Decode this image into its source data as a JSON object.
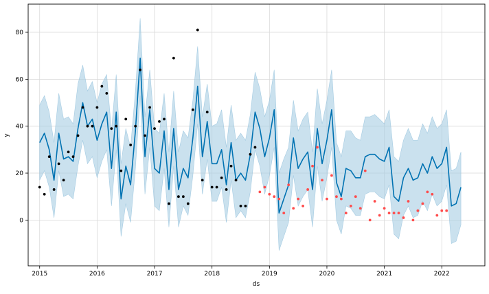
{
  "chart_data": {
    "type": "line",
    "xlabel": "ds",
    "ylabel": "y",
    "xlim": [
      2014.8,
      2022.75
    ],
    "ylim": [
      -19.5,
      92
    ],
    "x_ticks": [
      2015,
      2016,
      2017,
      2018,
      2019,
      2020,
      2021,
      2022
    ],
    "x_tick_labels": [
      "2015",
      "2016",
      "2017",
      "2018",
      "2019",
      "2020",
      "2021",
      "2022"
    ],
    "y_ticks": [
      0,
      20,
      40,
      60,
      80
    ],
    "y_tick_labels": [
      "0",
      "20",
      "40",
      "60",
      "80"
    ],
    "grid": true,
    "colors": {
      "forecast_line": "#0072b2",
      "uncertainty_band": "#a6cde3",
      "observed": "#000000",
      "test": "#ff4b4b",
      "grid": "#d9d9d9",
      "axis": "#000000"
    },
    "series": [
      {
        "name": "forecast",
        "x": [
          2015.0,
          2015.083,
          2015.167,
          2015.25,
          2015.333,
          2015.417,
          2015.5,
          2015.583,
          2015.667,
          2015.75,
          2015.833,
          2015.917,
          2016.0,
          2016.083,
          2016.167,
          2016.25,
          2016.333,
          2016.417,
          2016.5,
          2016.583,
          2016.667,
          2016.75,
          2016.833,
          2016.917,
          2017.0,
          2017.083,
          2017.167,
          2017.25,
          2017.333,
          2017.417,
          2017.5,
          2017.583,
          2017.667,
          2017.75,
          2017.833,
          2017.917,
          2018.0,
          2018.083,
          2018.167,
          2018.25,
          2018.333,
          2018.417,
          2018.5,
          2018.583,
          2018.667,
          2018.75,
          2018.833,
          2018.917,
          2019.0,
          2019.083,
          2019.167,
          2019.25,
          2019.333,
          2019.417,
          2019.5,
          2019.583,
          2019.667,
          2019.75,
          2019.833,
          2019.917,
          2020.0,
          2020.083,
          2020.167,
          2020.25,
          2020.333,
          2020.417,
          2020.5,
          2020.583,
          2020.667,
          2020.75,
          2020.833,
          2020.917,
          2021.0,
          2021.083,
          2021.167,
          2021.25,
          2021.333,
          2021.417,
          2021.5,
          2021.583,
          2021.667,
          2021.75,
          2021.833,
          2021.917,
          2022.0,
          2022.083,
          2022.167,
          2022.25,
          2022.333
        ],
        "y": [
          33,
          37,
          30,
          17,
          37,
          26,
          27,
          25,
          39,
          50,
          40,
          43,
          34,
          41,
          46,
          22,
          46,
          9,
          23,
          15,
          38,
          69,
          27,
          47,
          22,
          20,
          38,
          13,
          39,
          13,
          22,
          18,
          35,
          57,
          27,
          42,
          24,
          24,
          30,
          15,
          33,
          17,
          20,
          17,
          28,
          46,
          39,
          27,
          35,
          47,
          3,
          9,
          15,
          35,
          22,
          26,
          29,
          13,
          39,
          24,
          34,
          47,
          16,
          10,
          22,
          21,
          18,
          18,
          27,
          28,
          28,
          26,
          25,
          31,
          10,
          8,
          18,
          22,
          17,
          18,
          24,
          20,
          27,
          22,
          24,
          31,
          6,
          7,
          14
        ]
      },
      {
        "name": "uncertainty_upper",
        "x": [
          2015.0,
          2015.083,
          2015.167,
          2015.25,
          2015.333,
          2015.417,
          2015.5,
          2015.583,
          2015.667,
          2015.75,
          2015.833,
          2015.917,
          2016.0,
          2016.083,
          2016.167,
          2016.25,
          2016.333,
          2016.417,
          2016.5,
          2016.583,
          2016.667,
          2016.75,
          2016.833,
          2016.917,
          2017.0,
          2017.083,
          2017.167,
          2017.25,
          2017.333,
          2017.417,
          2017.5,
          2017.583,
          2017.667,
          2017.75,
          2017.833,
          2017.917,
          2018.0,
          2018.083,
          2018.167,
          2018.25,
          2018.333,
          2018.417,
          2018.5,
          2018.583,
          2018.667,
          2018.75,
          2018.833,
          2018.917,
          2019.0,
          2019.083,
          2019.167,
          2019.25,
          2019.333,
          2019.417,
          2019.5,
          2019.583,
          2019.667,
          2019.75,
          2019.833,
          2019.917,
          2020.0,
          2020.083,
          2020.167,
          2020.25,
          2020.333,
          2020.417,
          2020.5,
          2020.583,
          2020.667,
          2020.75,
          2020.833,
          2020.917,
          2021.0,
          2021.083,
          2021.167,
          2021.25,
          2021.333,
          2021.417,
          2021.5,
          2021.583,
          2021.667,
          2021.75,
          2021.833,
          2021.917,
          2022.0,
          2022.083,
          2022.167,
          2022.25,
          2022.333
        ],
        "y": [
          49,
          53,
          46,
          33,
          54,
          43,
          44,
          41,
          58,
          66,
          55,
          59,
          50,
          58,
          62,
          38,
          62,
          24,
          39,
          31,
          55,
          86,
          44,
          64,
          39,
          37,
          54,
          29,
          55,
          29,
          38,
          35,
          51,
          74,
          44,
          58,
          40,
          41,
          47,
          31,
          49,
          34,
          37,
          34,
          45,
          63,
          56,
          44,
          51,
          64,
          20,
          26,
          31,
          51,
          38,
          43,
          46,
          29,
          56,
          41,
          51,
          64,
          33,
          27,
          38,
          38,
          35,
          34,
          44,
          44,
          45,
          43,
          41,
          47,
          27,
          25,
          34,
          39,
          34,
          34,
          41,
          37,
          44,
          39,
          41,
          47,
          21,
          22,
          29
        ]
      },
      {
        "name": "uncertainty_lower",
        "x": [
          2015.0,
          2015.083,
          2015.167,
          2015.25,
          2015.333,
          2015.417,
          2015.5,
          2015.583,
          2015.667,
          2015.75,
          2015.833,
          2015.917,
          2016.0,
          2016.083,
          2016.167,
          2016.25,
          2016.333,
          2016.417,
          2016.5,
          2016.583,
          2016.667,
          2016.75,
          2016.833,
          2016.917,
          2017.0,
          2017.083,
          2017.167,
          2017.25,
          2017.333,
          2017.417,
          2017.5,
          2017.583,
          2017.667,
          2017.75,
          2017.833,
          2017.917,
          2018.0,
          2018.083,
          2018.167,
          2018.25,
          2018.333,
          2018.417,
          2018.5,
          2018.583,
          2018.667,
          2018.75,
          2018.833,
          2018.917,
          2019.0,
          2019.083,
          2019.167,
          2019.25,
          2019.333,
          2019.417,
          2019.5,
          2019.583,
          2019.667,
          2019.75,
          2019.833,
          2019.917,
          2020.0,
          2020.083,
          2020.167,
          2020.25,
          2020.333,
          2020.417,
          2020.5,
          2020.583,
          2020.667,
          2020.75,
          2020.833,
          2020.917,
          2021.0,
          2021.083,
          2021.167,
          2021.25,
          2021.333,
          2021.417,
          2021.5,
          2021.583,
          2021.667,
          2021.75,
          2021.833,
          2021.917,
          2022.0,
          2022.083,
          2022.167,
          2022.25,
          2022.333
        ],
        "y": [
          17,
          21,
          14,
          1,
          21,
          10,
          11,
          9,
          23,
          34,
          24,
          27,
          18,
          25,
          30,
          6,
          30,
          -7,
          7,
          -1,
          22,
          53,
          11,
          31,
          6,
          4,
          22,
          -3,
          23,
          -3,
          6,
          2,
          19,
          41,
          11,
          26,
          8,
          8,
          14,
          -1,
          17,
          1,
          4,
          1,
          12,
          30,
          23,
          11,
          19,
          31,
          -13,
          -7,
          -1,
          19,
          6,
          10,
          13,
          -3,
          23,
          8,
          18,
          31,
          0,
          -6,
          6,
          5,
          2,
          2,
          11,
          12,
          12,
          10,
          9,
          15,
          -6,
          -8,
          2,
          6,
          1,
          2,
          8,
          4,
          11,
          6,
          8,
          15,
          -10,
          -9,
          -2
        ]
      },
      {
        "name": "observed",
        "x": [
          2015.0,
          2015.083,
          2015.167,
          2015.25,
          2015.333,
          2015.417,
          2015.5,
          2015.583,
          2015.667,
          2015.75,
          2015.833,
          2015.917,
          2016.0,
          2016.083,
          2016.167,
          2016.25,
          2016.333,
          2016.417,
          2016.5,
          2016.583,
          2016.667,
          2016.75,
          2016.833,
          2016.917,
          2017.0,
          2017.083,
          2017.167,
          2017.25,
          2017.333,
          2017.417,
          2017.5,
          2017.583,
          2017.667,
          2017.75,
          2017.833,
          2017.917,
          2018.0,
          2018.083,
          2018.167,
          2018.25,
          2018.333,
          2018.417,
          2018.5,
          2018.583,
          2018.667,
          2018.75
        ],
        "y": [
          14,
          11,
          27,
          13,
          24,
          17,
          29,
          27,
          36,
          48,
          40,
          40,
          48,
          57,
          54,
          39,
          40,
          21,
          43,
          32,
          40,
          64,
          36,
          48,
          39,
          42,
          43,
          7,
          69,
          10,
          10,
          7,
          47,
          81,
          17,
          46,
          14,
          14,
          18,
          13,
          23,
          17,
          6,
          6,
          28,
          31
        ]
      },
      {
        "name": "test",
        "x": [
          2018.833,
          2018.917,
          2019.0,
          2019.083,
          2019.167,
          2019.25,
          2019.333,
          2019.417,
          2019.5,
          2019.583,
          2019.667,
          2019.75,
          2019.833,
          2019.917,
          2020.0,
          2020.083,
          2020.167,
          2020.25,
          2020.333,
          2020.417,
          2020.5,
          2020.583,
          2020.667,
          2020.75,
          2020.833,
          2020.917,
          2021.0,
          2021.083,
          2021.167,
          2021.25,
          2021.333,
          2021.417,
          2021.5,
          2021.583,
          2021.667,
          2021.75,
          2021.833,
          2021.917,
          2022.0,
          2022.083
        ],
        "y": [
          12,
          14,
          11,
          10,
          9,
          3,
          15,
          5,
          9,
          6,
          13,
          23,
          31,
          17,
          9,
          19,
          10,
          9,
          3,
          6,
          10,
          5,
          21,
          0,
          8,
          2,
          5,
          3,
          3,
          3,
          1,
          8,
          0,
          4,
          7,
          12,
          11,
          2,
          4,
          4
        ]
      }
    ]
  }
}
